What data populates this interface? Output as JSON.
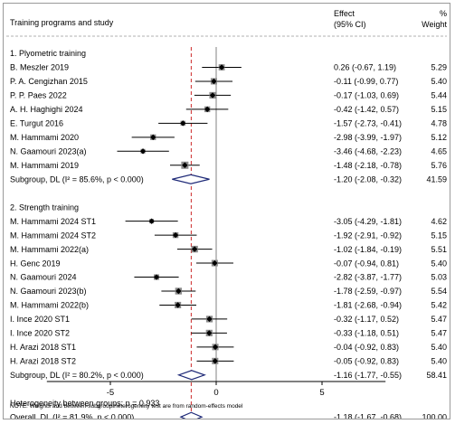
{
  "header": {
    "study_col": "Training programs and study",
    "effect_line1": "Effect",
    "effect_line2": "(95% CI)",
    "weight_line1": "%",
    "weight_line2": "Weight"
  },
  "note": "NOTE: Weights and between-subgroup heterogeneity test are from random-effects model",
  "colors": {
    "point": "#000000",
    "ci": "#000000",
    "box": "#8c8c8c",
    "diamond": "#1f2a78",
    "overall_line": "#cc2a2a",
    "null_line": "#808080"
  },
  "chart_data": {
    "type": "forest",
    "xlim": [
      -8,
      8
    ],
    "xticks": [
      -5,
      0,
      5
    ],
    "null_line": 0,
    "overall_line": -1.18,
    "rows": [
      {
        "kind": "group",
        "label": "1. Plyometric training"
      },
      {
        "kind": "study",
        "label": "B. Meszler 2019",
        "est": 0.26,
        "lo": -0.67,
        "hi": 1.19,
        "ci_text": "0.26 (-0.67, 1.19)",
        "weight": "5.29"
      },
      {
        "kind": "study",
        "label": "P. A. Cengizhan 2015",
        "est": -0.11,
        "lo": -0.99,
        "hi": 0.77,
        "ci_text": "-0.11 (-0.99, 0.77)",
        "weight": "5.40"
      },
      {
        "kind": "study",
        "label": "P. P. Paes 2022",
        "est": -0.17,
        "lo": -1.03,
        "hi": 0.69,
        "ci_text": "-0.17 (-1.03, 0.69)",
        "weight": "5.44"
      },
      {
        "kind": "study",
        "label": "A. H. Haghighi 2024",
        "est": -0.42,
        "lo": -1.42,
        "hi": 0.57,
        "ci_text": "-0.42 (-1.42, 0.57)",
        "weight": "5.15"
      },
      {
        "kind": "study",
        "label": "E. Turgut 2016",
        "est": -1.57,
        "lo": -2.73,
        "hi": -0.41,
        "ci_text": "-1.57 (-2.73, -0.41)",
        "weight": "4.78"
      },
      {
        "kind": "study",
        "label": "M. Hammami 2020",
        "est": -2.98,
        "lo": -3.99,
        "hi": -1.97,
        "ci_text": "-2.98 (-3.99, -1.97)",
        "weight": "5.12"
      },
      {
        "kind": "study",
        "label": "N. Gaamouri 2023(a)",
        "est": -3.46,
        "lo": -4.68,
        "hi": -2.23,
        "ci_text": "-3.46 (-4.68, -2.23)",
        "weight": "4.65"
      },
      {
        "kind": "study",
        "label": "M. Hammami 2019",
        "est": -1.48,
        "lo": -2.18,
        "hi": -0.78,
        "ci_text": "-1.48 (-2.18, -0.78)",
        "weight": "5.76"
      },
      {
        "kind": "subtotal",
        "label": "Subgroup, DL (I² = 85.6%, p < 0.000)",
        "est": -1.2,
        "lo": -2.08,
        "hi": -0.32,
        "ci_text": "-1.20 (-2.08, -0.32)",
        "weight": "41.59"
      },
      {
        "kind": "blank"
      },
      {
        "kind": "group",
        "label": "2. Strength training"
      },
      {
        "kind": "study",
        "label": "M. Hammami 2024 ST1",
        "est": -3.05,
        "lo": -4.29,
        "hi": -1.81,
        "ci_text": "-3.05 (-4.29, -1.81)",
        "weight": "4.62"
      },
      {
        "kind": "study",
        "label": "M. Hammami 2024 ST2",
        "est": -1.92,
        "lo": -2.91,
        "hi": -0.92,
        "ci_text": "-1.92 (-2.91, -0.92)",
        "weight": "5.15"
      },
      {
        "kind": "study",
        "label": "M. Hammami 2022(a)",
        "est": -1.02,
        "lo": -1.84,
        "hi": -0.19,
        "ci_text": "-1.02 (-1.84, -0.19)",
        "weight": "5.51"
      },
      {
        "kind": "study",
        "label": "H. Genc 2019",
        "est": -0.07,
        "lo": -0.94,
        "hi": 0.81,
        "ci_text": "-0.07 (-0.94, 0.81)",
        "weight": "5.40"
      },
      {
        "kind": "study",
        "label": "N. Gaamouri 2024",
        "est": -2.82,
        "lo": -3.87,
        "hi": -1.77,
        "ci_text": "-2.82 (-3.87, -1.77)",
        "weight": "5.03"
      },
      {
        "kind": "study",
        "label": "N. Gaamouri 2023(b)",
        "est": -1.78,
        "lo": -2.59,
        "hi": -0.97,
        "ci_text": "-1.78 (-2.59, -0.97)",
        "weight": "5.54"
      },
      {
        "kind": "study",
        "label": "M. Hammami 2022(b)",
        "est": -1.81,
        "lo": -2.68,
        "hi": -0.94,
        "ci_text": "-1.81 (-2.68, -0.94)",
        "weight": "5.42"
      },
      {
        "kind": "study",
        "label": "I. Ince 2020 ST1",
        "est": -0.32,
        "lo": -1.17,
        "hi": 0.52,
        "ci_text": "-0.32 (-1.17, 0.52)",
        "weight": "5.47"
      },
      {
        "kind": "study",
        "label": "I. Ince 2020 ST2",
        "est": -0.33,
        "lo": -1.18,
        "hi": 0.51,
        "ci_text": "-0.33 (-1.18, 0.51)",
        "weight": "5.47"
      },
      {
        "kind": "study",
        "label": "H. Arazi 2018 ST1",
        "est": -0.04,
        "lo": -0.92,
        "hi": 0.83,
        "ci_text": "-0.04 (-0.92, 0.83)",
        "weight": "5.40"
      },
      {
        "kind": "study",
        "label": "H. Arazi 2018 ST2",
        "est": -0.05,
        "lo": -0.92,
        "hi": 0.83,
        "ci_text": "-0.05 (-0.92, 0.83)",
        "weight": "5.40"
      },
      {
        "kind": "subtotal",
        "label": "Subgroup, DL (I² = 80.2%, p < 0.000)",
        "est": -1.16,
        "lo": -1.77,
        "hi": -0.55,
        "ci_text": "-1.16 (-1.77, -0.55)",
        "weight": "58.41"
      },
      {
        "kind": "blank"
      },
      {
        "kind": "text",
        "label": "Heterogeneity between groups: p = 0.933"
      },
      {
        "kind": "overall",
        "label": "Overall, DL (I² = 81.9%, p < 0.000)",
        "est": -1.18,
        "lo": -1.67,
        "hi": -0.68,
        "ci_text": "-1.18 (-1.67, -0.68)",
        "weight": "100.00"
      }
    ]
  }
}
